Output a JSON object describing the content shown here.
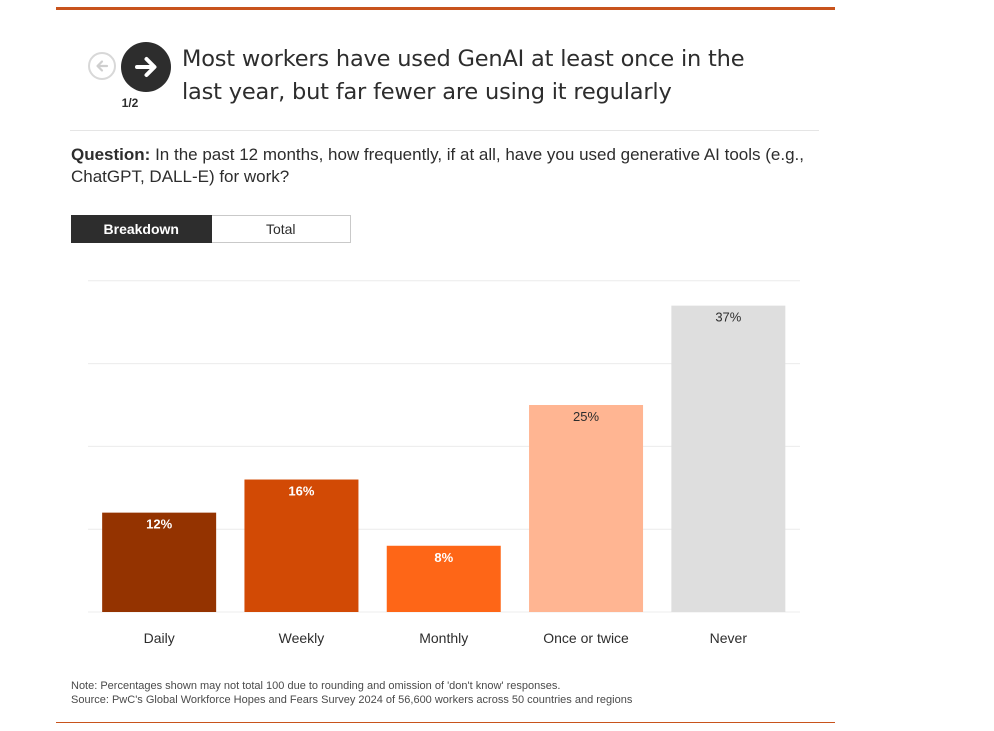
{
  "navigation": {
    "page_indicator": "1/2",
    "prev_icon": "arrow-left-icon",
    "next_icon": "arrow-right-icon"
  },
  "title": "Most workers have used GenAI at least once in the last year, but far fewer are using it regularly",
  "question": {
    "label": "Question:",
    "text": "In the past 12 months, how frequently, if at all, have you used generative AI tools (e.g., ChatGPT, DALL-E) for work?"
  },
  "toggle": {
    "breakdown_label": "Breakdown",
    "total_label": "Total",
    "selected": "Breakdown"
  },
  "chart_data": {
    "type": "bar",
    "categories": [
      "Daily",
      "Weekly",
      "Monthly",
      "Once or twice",
      "Never"
    ],
    "values": [
      12,
      16,
      8,
      25,
      37
    ],
    "value_labels": [
      "12%",
      "16%",
      "8%",
      "25%",
      "37%"
    ],
    "colors": [
      "#943300",
      "#d24a05",
      "#fe6617",
      "#ffb592",
      "#dedede"
    ],
    "label_colors": [
      "#ffffff",
      "#ffffff",
      "#ffffff",
      "#2d2d2d",
      "#2d2d2d"
    ],
    "ylim": [
      0,
      40
    ],
    "grid": true,
    "title": "",
    "xlabel": "",
    "ylabel": ""
  },
  "footnote": {
    "note": "Note: Percentages shown may not total 100 due to rounding and omission of 'don't know' responses.",
    "source": "Source: PwC's Global Workforce Hopes and Fears Survey 2024 of 56,600 workers across 50 countries and regions"
  },
  "colors": {
    "accent": "#c8531c",
    "dark": "#2d2d2d",
    "grid": "#ececec"
  }
}
